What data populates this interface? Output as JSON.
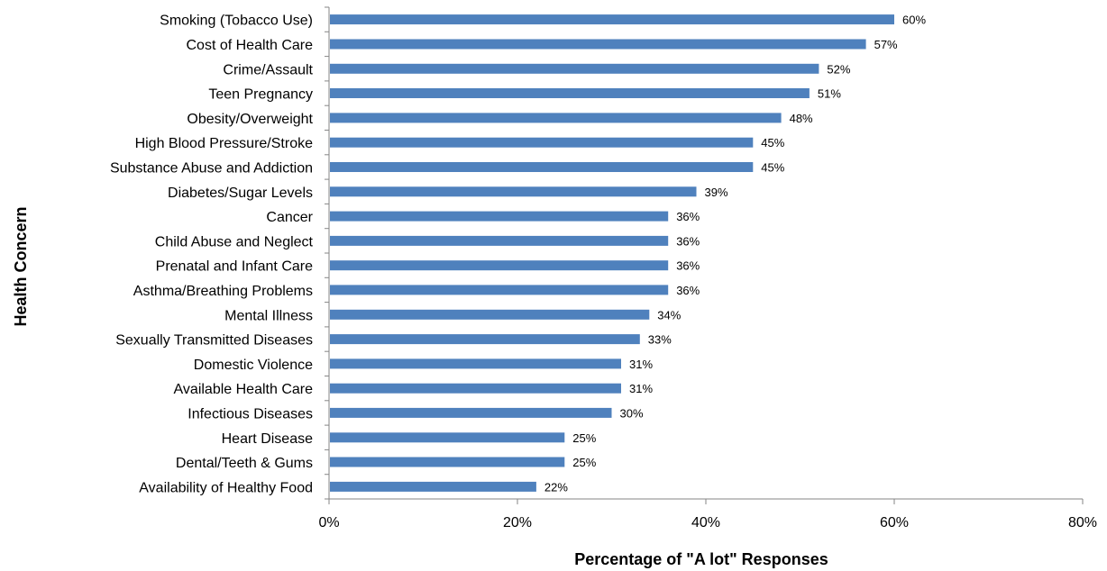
{
  "chart_data": {
    "type": "bar",
    "orientation": "horizontal",
    "categories": [
      "Smoking (Tobacco Use)",
      "Cost of Health Care",
      "Crime/Assault",
      "Teen Pregnancy",
      "Obesity/Overweight",
      "High Blood Pressure/Stroke",
      "Substance Abuse and Addiction",
      "Diabetes/Sugar Levels",
      "Cancer",
      "Child Abuse and Neglect",
      "Prenatal and Infant Care",
      "Asthma/Breathing Problems",
      "Mental Illness",
      "Sexually Transmitted Diseases",
      "Domestic Violence",
      "Available Health Care",
      "Infectious Diseases",
      "Heart Disease",
      "Dental/Teeth & Gums",
      "Availability of Healthy Food"
    ],
    "values": [
      60,
      57,
      52,
      51,
      48,
      45,
      45,
      39,
      36,
      36,
      36,
      36,
      34,
      33,
      31,
      31,
      30,
      25,
      25,
      22
    ],
    "value_labels": [
      "60%",
      "57%",
      "52%",
      "51%",
      "48%",
      "45%",
      "45%",
      "39%",
      "36%",
      "36%",
      "36%",
      "36%",
      "34%",
      "33%",
      "31%",
      "31%",
      "30%",
      "25%",
      "25%",
      "22%"
    ],
    "xlabel": "Percentage of \"A lot\" Responses",
    "ylabel": "Health Concern",
    "xlim": [
      0,
      80
    ],
    "xticks": [
      "0%",
      "20%",
      "40%",
      "60%",
      "80%"
    ],
    "grid": false,
    "legend": "none",
    "bar_color": "#4F81BD"
  }
}
